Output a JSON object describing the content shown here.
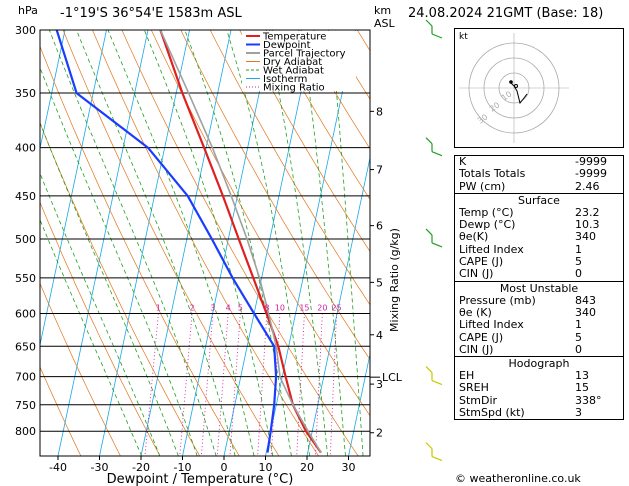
{
  "header": {
    "hpa_unit": "hPa",
    "location": "-1°19'S  36°54'E  1583m  ASL",
    "km_unit": "km",
    "asl_unit": "ASL",
    "datetime": "24.08.2024  21GMT  (Base: 18)"
  },
  "chart_data": {
    "type": "line",
    "title": "Skew-T log-P diagram",
    "xlabel": "Dewpoint / Temperature (°C)",
    "ylabel": "hPa",
    "ylabel_right": "Mixing Ratio (g/kg)",
    "pressure_ticks": [
      300,
      350,
      400,
      450,
      500,
      550,
      600,
      650,
      700,
      750,
      800
    ],
    "temperature_ticks": [
      -40,
      -30,
      -20,
      -10,
      0,
      10,
      20,
      30
    ],
    "km_ticks": [
      {
        "label": "8",
        "p": 366
      },
      {
        "label": "7",
        "p": 422
      },
      {
        "label": "6",
        "p": 484
      },
      {
        "label": "5",
        "p": 556
      },
      {
        "label": "4",
        "p": 632
      },
      {
        "label": "3",
        "p": 713
      },
      {
        "label": "2",
        "p": 803
      }
    ],
    "lcl": {
      "label": "LCL",
      "p": 701
    },
    "mixing_ratio_labels": [
      "1",
      "2",
      "3",
      "4",
      "5",
      "8",
      "10",
      "15",
      "20",
      "25"
    ],
    "mixing_ratio_values": [
      1,
      2,
      3,
      4,
      5,
      8,
      10,
      15,
      20,
      25
    ],
    "legend": [
      "Temperature",
      "Dewpoint",
      "Parcel Trajectory",
      "Dry Adiabat",
      "Wet Adiabat",
      "Isotherm",
      "Mixing Ratio"
    ],
    "series": [
      {
        "name": "Temperature",
        "color": "#e02020",
        "points": [
          [
            843,
            23.2
          ],
          [
            800,
            18.5
          ],
          [
            750,
            14.0
          ],
          [
            700,
            10.8
          ],
          [
            650,
            7.5
          ],
          [
            600,
            3.0
          ],
          [
            550,
            -2.0
          ],
          [
            500,
            -7.5
          ],
          [
            450,
            -13.5
          ],
          [
            400,
            -20.5
          ],
          [
            350,
            -28.5
          ],
          [
            300,
            -37.0
          ]
        ]
      },
      {
        "name": "Dewpoint",
        "color": "#1a3cff",
        "points": [
          [
            843,
            10.3
          ],
          [
            800,
            10.0
          ],
          [
            750,
            9.5
          ],
          [
            700,
            8.5
          ],
          [
            650,
            6.5
          ],
          [
            600,
            0.0
          ],
          [
            550,
            -7.0
          ],
          [
            500,
            -14.0
          ],
          [
            450,
            -22.0
          ],
          [
            400,
            -34.0
          ],
          [
            350,
            -54.0
          ],
          [
            300,
            -62.0
          ]
        ]
      },
      {
        "name": "Parcel Trajectory",
        "color": "#a0a0a0",
        "points": [
          [
            843,
            23.2
          ],
          [
            800,
            19.0
          ],
          [
            750,
            14.0
          ],
          [
            701,
            9.5
          ],
          [
            650,
            7.0
          ],
          [
            600,
            3.5
          ],
          [
            550,
            -0.5
          ],
          [
            500,
            -5.5
          ],
          [
            450,
            -11.5
          ],
          [
            400,
            -18.5
          ],
          [
            350,
            -27.0
          ],
          [
            300,
            -37.0
          ]
        ]
      }
    ]
  },
  "hodograph": {
    "unit_label": "kt",
    "ring_labels": [
      "10",
      "20",
      "30"
    ]
  },
  "indices": {
    "k": {
      "label": "K",
      "value": "-9999"
    },
    "tt": {
      "label": "Totals Totals",
      "value": "-9999"
    },
    "pw": {
      "label": "PW (cm)",
      "value": "2.46"
    }
  },
  "surface": {
    "title": "Surface",
    "temp": {
      "label": "Temp (°C)",
      "value": "23.2"
    },
    "dewp": {
      "label": "Dewp (°C)",
      "value": "10.3"
    },
    "thetae": {
      "label": "θe(K)",
      "value": "340"
    },
    "li": {
      "label": "Lifted Index",
      "value": "1"
    },
    "cape": {
      "label": "CAPE (J)",
      "value": "5"
    },
    "cin": {
      "label": "CIN (J)",
      "value": "0"
    }
  },
  "unstable": {
    "title": "Most Unstable",
    "pressure": {
      "label": "Pressure (mb)",
      "value": "843"
    },
    "thetae": {
      "label": "θe (K)",
      "value": "340"
    },
    "li": {
      "label": "Lifted Index",
      "value": "1"
    },
    "cape": {
      "label": "CAPE (J)",
      "value": "5"
    },
    "cin": {
      "label": "CIN (J)",
      "value": "0"
    }
  },
  "hodo_table": {
    "title": "Hodograph",
    "eh": {
      "label": "EH",
      "value": "13"
    },
    "sreh": {
      "label": "SREH",
      "value": "15"
    },
    "stmdir": {
      "label": "StmDir",
      "value": "338°"
    },
    "stmspd": {
      "label": "StmSpd (kt)",
      "value": "3"
    }
  },
  "footer": {
    "copyright": "© weatheronline.co.uk"
  },
  "colors": {
    "temperature": "#e02020",
    "dewpoint": "#1a3cff",
    "parcel": "#a0a0a0",
    "dry_adiabat": "#e07820",
    "wet_adiabat": "#20a020",
    "isotherm": "#18a8e8",
    "mixing_ratio": "#d020a0",
    "wind": "#c8c800"
  }
}
